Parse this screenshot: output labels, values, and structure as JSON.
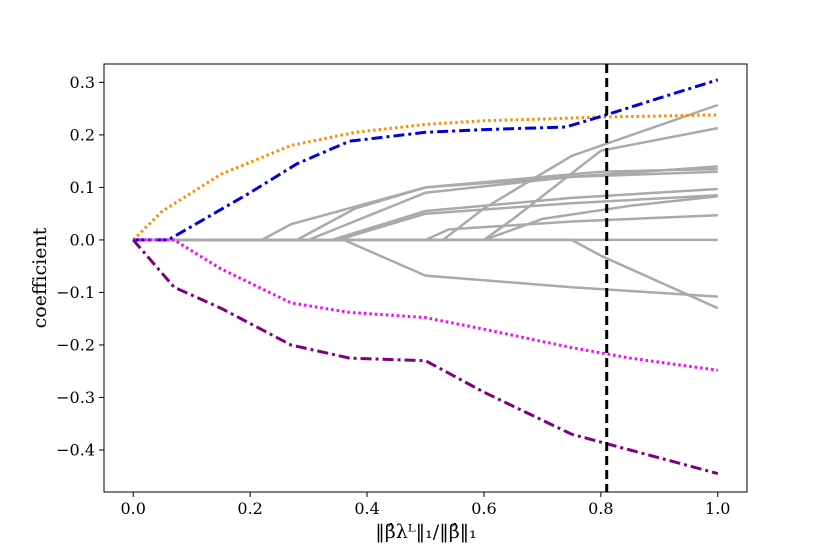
{
  "chart_data": {
    "type": "line",
    "title": "",
    "ylabel": "coefficient",
    "xlabel": "‖β̂λᴸ‖₁/‖β̂‖₁",
    "xlim": [
      -0.05,
      1.05
    ],
    "ylim": [
      -0.48,
      0.335
    ],
    "xticks": [
      0.0,
      0.2,
      0.4,
      0.6,
      0.8,
      1.0
    ],
    "xtick_labels": [
      "0.0",
      "0.2",
      "0.4",
      "0.6",
      "0.8",
      "1.0"
    ],
    "yticks": [
      0.3,
      0.2,
      0.1,
      0.0,
      -0.1,
      -0.2,
      -0.3,
      -0.4
    ],
    "ytick_labels": [
      "0.3",
      "0.2",
      "0.1",
      "0.0",
      "−0.1",
      "−0.2",
      "−0.3",
      "−0.4"
    ],
    "grid": false,
    "legend": "none",
    "vline": {
      "x": 0.81,
      "color": "#000000",
      "style": "dashed"
    },
    "series": [
      {
        "color": "#aaaaaa",
        "style": "solid",
        "points": [
          [
            0,
            0
          ],
          [
            1,
            0
          ]
        ]
      },
      {
        "color": "#aaaaaa",
        "style": "solid",
        "points": [
          [
            0,
            0
          ],
          [
            0.22,
            0
          ],
          [
            0.27,
            0.03
          ],
          [
            0.5,
            0.1
          ],
          [
            1,
            0.14
          ]
        ]
      },
      {
        "color": "#aaaaaa",
        "style": "solid",
        "points": [
          [
            0,
            0
          ],
          [
            0.28,
            0
          ],
          [
            0.38,
            0.06
          ],
          [
            0.5,
            0.1
          ],
          [
            0.8,
            0.13
          ],
          [
            1,
            0.135
          ]
        ]
      },
      {
        "color": "#aaaaaa",
        "style": "solid",
        "points": [
          [
            0,
            0
          ],
          [
            0.3,
            0
          ],
          [
            0.5,
            0.09
          ],
          [
            0.75,
            0.12
          ],
          [
            1,
            0.13
          ]
        ]
      },
      {
        "color": "#aaaaaa",
        "style": "solid",
        "points": [
          [
            0,
            0
          ],
          [
            0.34,
            0
          ],
          [
            0.5,
            0.055
          ],
          [
            0.75,
            0.08
          ],
          [
            1,
            0.097
          ]
        ]
      },
      {
        "color": "#aaaaaa",
        "style": "solid",
        "points": [
          [
            0,
            0
          ],
          [
            0.35,
            0
          ],
          [
            0.5,
            0.05
          ],
          [
            0.75,
            0.07
          ],
          [
            1,
            0.085
          ]
        ]
      },
      {
        "color": "#aaaaaa",
        "style": "solid",
        "points": [
          [
            0,
            0
          ],
          [
            0.5,
            0
          ],
          [
            0.54,
            0.02
          ],
          [
            0.75,
            0.035
          ],
          [
            1,
            0.047
          ]
        ]
      },
      {
        "color": "#aaaaaa",
        "style": "solid",
        "points": [
          [
            0,
            0
          ],
          [
            0.53,
            0
          ],
          [
            0.6,
            0.06
          ],
          [
            0.75,
            0.16
          ],
          [
            1,
            0.257
          ]
        ]
      },
      {
        "color": "#aaaaaa",
        "style": "solid",
        "points": [
          [
            0,
            0
          ],
          [
            0.6,
            0
          ],
          [
            0.65,
            0.04
          ],
          [
            0.8,
            0.17
          ],
          [
            1,
            0.213
          ]
        ]
      },
      {
        "color": "#aaaaaa",
        "style": "solid",
        "points": [
          [
            0,
            0
          ],
          [
            0.6,
            0
          ],
          [
            0.7,
            0.04
          ],
          [
            0.85,
            0.065
          ],
          [
            1,
            0.083
          ]
        ]
      },
      {
        "color": "#aaaaaa",
        "style": "solid",
        "points": [
          [
            0,
            0
          ],
          [
            0.36,
            0
          ],
          [
            0.5,
            -0.068
          ],
          [
            0.75,
            -0.09
          ],
          [
            1,
            -0.108
          ]
        ]
      },
      {
        "color": "#aaaaaa",
        "style": "solid",
        "points": [
          [
            0,
            0
          ],
          [
            0.75,
            0
          ],
          [
            0.8,
            -0.03
          ],
          [
            1,
            -0.13
          ]
        ]
      },
      {
        "color": "#ff8c00",
        "style": "dotted",
        "points": [
          [
            0,
            0
          ],
          [
            0.05,
            0.055
          ],
          [
            0.15,
            0.125
          ],
          [
            0.27,
            0.18
          ],
          [
            0.38,
            0.205
          ],
          [
            0.5,
            0.22
          ],
          [
            0.6,
            0.227
          ],
          [
            0.7,
            0.23
          ],
          [
            0.8,
            0.234
          ],
          [
            0.9,
            0.236
          ],
          [
            1,
            0.238
          ]
        ]
      },
      {
        "color": "#0000e0",
        "style": "dashdot",
        "points": [
          [
            0,
            0
          ],
          [
            0.06,
            0
          ],
          [
            0.2,
            0.09
          ],
          [
            0.28,
            0.145
          ],
          [
            0.37,
            0.188
          ],
          [
            0.5,
            0.205
          ],
          [
            0.6,
            0.21
          ],
          [
            0.74,
            0.215
          ],
          [
            0.8,
            0.235
          ],
          [
            0.9,
            0.27
          ],
          [
            1,
            0.305
          ]
        ]
      },
      {
        "color": "#ff00ff",
        "style": "dotted",
        "points": [
          [
            0,
            0
          ],
          [
            0.07,
            0
          ],
          [
            0.15,
            -0.055
          ],
          [
            0.27,
            -0.12
          ],
          [
            0.37,
            -0.138
          ],
          [
            0.5,
            -0.148
          ],
          [
            0.6,
            -0.17
          ],
          [
            0.75,
            -0.205
          ],
          [
            0.85,
            -0.225
          ],
          [
            1,
            -0.248
          ]
        ]
      },
      {
        "color": "#800080",
        "style": "dashdot",
        "points": [
          [
            0,
            0
          ],
          [
            0.07,
            -0.09
          ],
          [
            0.15,
            -0.13
          ],
          [
            0.27,
            -0.2
          ],
          [
            0.37,
            -0.225
          ],
          [
            0.5,
            -0.23
          ],
          [
            0.6,
            -0.29
          ],
          [
            0.75,
            -0.37
          ],
          [
            0.85,
            -0.4
          ],
          [
            1,
            -0.445
          ]
        ]
      }
    ]
  }
}
